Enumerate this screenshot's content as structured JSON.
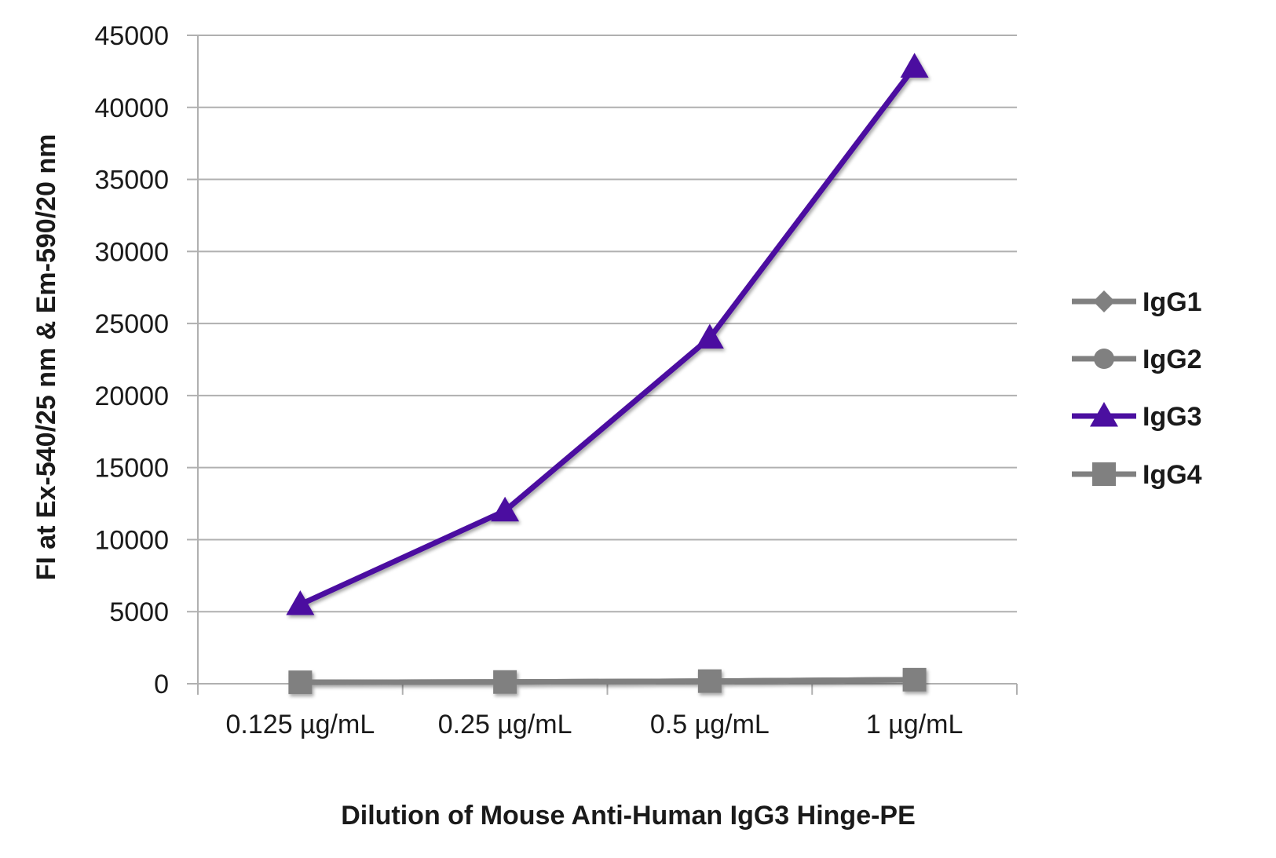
{
  "chart_data": {
    "type": "line",
    "categories": [
      "0.125 µg/mL",
      "0.25 µg/mL",
      "0.5 µg/mL",
      "1 µg/mL"
    ],
    "series": [
      {
        "name": "IgG1",
        "values": [
          100,
          120,
          180,
          280
        ],
        "color": "#808080",
        "marker": "diamond"
      },
      {
        "name": "IgG2",
        "values": [
          100,
          120,
          180,
          280
        ],
        "color": "#808080",
        "marker": "circle"
      },
      {
        "name": "IgG3",
        "values": [
          5500,
          12000,
          24000,
          42800
        ],
        "color": "#4b0fa0",
        "marker": "triangle"
      },
      {
        "name": "IgG4",
        "values": [
          100,
          120,
          180,
          280
        ],
        "color": "#808080",
        "marker": "square"
      }
    ],
    "xlabel": "Dilution of Mouse Anti-Human IgG3 Hinge-PE",
    "ylabel": "FI at Ex-540/25 nm & Em-590/20 nm",
    "ylim": [
      0,
      45000
    ],
    "yticks": [
      0,
      5000,
      10000,
      15000,
      20000,
      25000,
      30000,
      35000,
      40000,
      45000
    ],
    "grid": true,
    "legend_position": "right"
  }
}
